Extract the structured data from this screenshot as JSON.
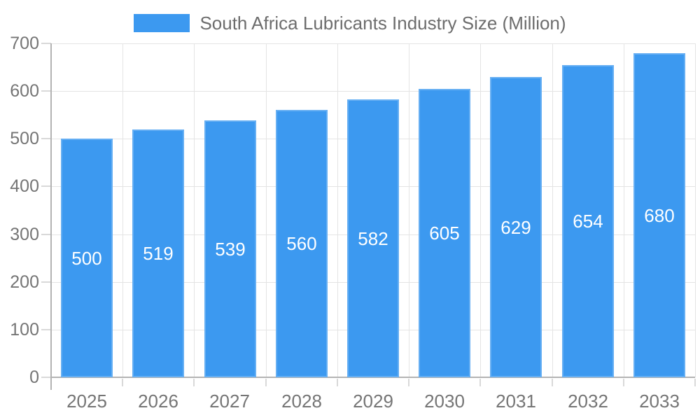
{
  "legend": {
    "label": "South Africa Lubricants Industry Size (Million)"
  },
  "chart_data": {
    "type": "bar",
    "title": "South Africa Lubricants Industry Size (Million)",
    "series_name": "South Africa Lubricants Industry Size (Million)",
    "categories": [
      "2025",
      "2026",
      "2027",
      "2028",
      "2029",
      "2030",
      "2031",
      "2032",
      "2033"
    ],
    "values": [
      500,
      519,
      539,
      560,
      582,
      605,
      629,
      654,
      680
    ],
    "xlabel": "",
    "ylabel": "",
    "ylim": [
      0,
      700
    ],
    "ytick_step": 100,
    "grid": "horizontal gridlines at every 100 and vertical gridlines at category boundaries",
    "legend_position": "top-center",
    "bar_label_position": "inside-center",
    "colors": {
      "bar": "#3c99f0",
      "bar_label": "#ffffff",
      "axis_text": "#757575",
      "legend_text": "#6d6d6d",
      "gridline": "#e4e4e4",
      "axis_line": "#b3b3b3",
      "tick": "#d9d9d9"
    }
  }
}
